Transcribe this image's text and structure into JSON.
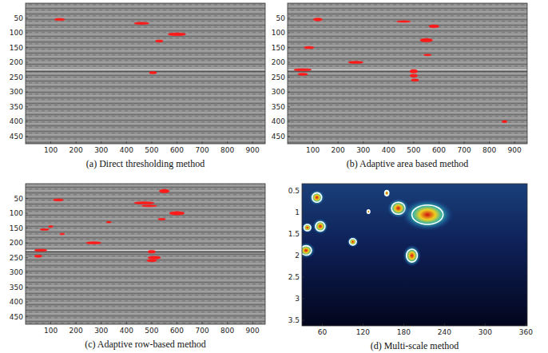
{
  "chart_data": [
    {
      "type": "detection",
      "title": "(a) Direct thresholding method",
      "color": "#ff1a1a",
      "marker": "ellipse",
      "xlim": [
        0,
        950
      ],
      "ylim": [
        0,
        475
      ],
      "xticks": [
        100,
        200,
        300,
        400,
        500,
        600,
        700,
        800,
        900
      ],
      "yticks": [
        50,
        100,
        150,
        200,
        250,
        300,
        350,
        400,
        450
      ],
      "x": [
        135,
        460,
        530,
        600,
        505
      ],
      "values": [
        55,
        68,
        128,
        105,
        235
      ],
      "widths": [
        40,
        60,
        30,
        70,
        30
      ],
      "heights": [
        8,
        8,
        8,
        10,
        8
      ]
    },
    {
      "type": "detection",
      "title": "(b) Adaptive area based method",
      "color": "#ff1a1a",
      "marker": "ellipse",
      "xlim": [
        0,
        950
      ],
      "ylim": [
        0,
        475
      ],
      "xticks": [
        100,
        200,
        300,
        400,
        500,
        600,
        700,
        800,
        900
      ],
      "yticks": [
        50,
        100,
        150,
        200,
        250,
        300,
        350,
        400,
        450
      ],
      "x": [
        120,
        85,
        60,
        60,
        270,
        460,
        580,
        550,
        555,
        500,
        500,
        505,
        860
      ],
      "values": [
        55,
        150,
        225,
        240,
        200,
        62,
        78,
        125,
        175,
        230,
        245,
        260,
        400
      ],
      "widths": [
        35,
        40,
        70,
        40,
        60,
        55,
        40,
        50,
        30,
        30,
        30,
        30,
        20
      ],
      "heights": [
        10,
        8,
        8,
        8,
        8,
        6,
        10,
        12,
        6,
        12,
        10,
        8,
        8
      ]
    },
    {
      "type": "detection",
      "title": "(c) Adaptive row-based method",
      "color": "#ff1a1a",
      "marker": "ellipse",
      "xlim": [
        0,
        950
      ],
      "ylim": [
        0,
        475
      ],
      "xticks": [
        100,
        200,
        300,
        400,
        500,
        600,
        700,
        800,
        900
      ],
      "yticks": [
        50,
        100,
        150,
        200,
        250,
        300,
        350,
        400,
        450
      ],
      "x": [
        130,
        75,
        145,
        100,
        60,
        50,
        270,
        330,
        470,
        490,
        550,
        540,
        600,
        500,
        510,
        500
      ],
      "values": [
        55,
        155,
        170,
        145,
        225,
        245,
        200,
        130,
        65,
        75,
        25,
        120,
        100,
        230,
        250,
        260
      ],
      "widths": [
        40,
        35,
        20,
        20,
        50,
        30,
        60,
        20,
        80,
        60,
        40,
        30,
        60,
        30,
        50,
        40
      ],
      "heights": [
        8,
        6,
        6,
        6,
        8,
        8,
        8,
        6,
        8,
        6,
        12,
        6,
        12,
        10,
        10,
        8
      ]
    },
    {
      "type": "contour",
      "title": "(d) Multi-scale method",
      "color": "#ffffff",
      "marker": "ellipse",
      "xlim": [
        30,
        362
      ],
      "ylim": [
        0.33,
        3.63
      ],
      "xticks": [
        60,
        120,
        180,
        240,
        300,
        360
      ],
      "yticks": [
        0.5,
        1,
        1.5,
        2,
        2.5,
        3,
        3.5
      ],
      "x": [
        52,
        38,
        57,
        36,
        105,
        128,
        155,
        172,
        215,
        192
      ],
      "values": [
        0.65,
        1.35,
        1.32,
        1.88,
        1.68,
        0.98,
        0.55,
        0.9,
        1.05,
        2.0
      ],
      "widths": [
        14,
        10,
        14,
        16,
        10,
        4,
        6,
        20,
        46,
        16
      ],
      "heights": [
        0.22,
        0.15,
        0.22,
        0.22,
        0.15,
        0.08,
        0.12,
        0.28,
        0.45,
        0.3
      ]
    }
  ]
}
